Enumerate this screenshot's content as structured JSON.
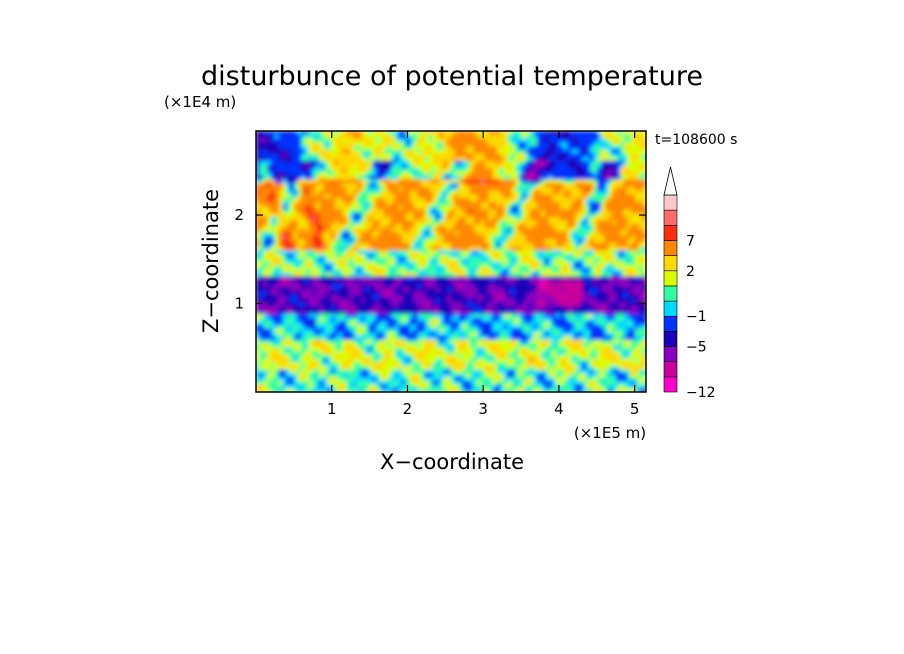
{
  "chart_data": {
    "type": "heatmap",
    "title": "disturbunce of potential temperature",
    "time_label": "t=108600 s",
    "xlabel": "X−coordinate",
    "ylabel": "Z−coordinate",
    "x_unit": "(×1E5 m)",
    "y_unit": "(×1E4 m)",
    "xlim": [
      0,
      5.15
    ],
    "ylim": [
      0,
      2.95
    ],
    "x_ticks": [
      1,
      2,
      3,
      4,
      5
    ],
    "x_tick_labels": [
      "1",
      "2",
      "3",
      "4",
      "5"
    ],
    "y_ticks": [
      1,
      2
    ],
    "y_tick_labels": [
      "1",
      "2"
    ],
    "colorbar": {
      "levels": [
        -12,
        -10,
        -7,
        -5,
        -3,
        -1,
        0,
        1,
        2,
        4,
        7,
        9,
        12
      ],
      "colors": [
        "#ff00cc",
        "#c8009c",
        "#8a00c0",
        "#1a00b8",
        "#0033ff",
        "#00d8ff",
        "#30ffa0",
        "#d8ff00",
        "#ffd800",
        "#ff8800",
        "#ff2d10",
        "#ff6a6a",
        "#ffc8c8"
      ],
      "extend_top_color": "#ffffff",
      "tick_values": [
        -12,
        -5,
        -1,
        2,
        7
      ],
      "tick_labels": [
        "−12",
        "−5",
        "−1",
        "2",
        "7"
      ]
    },
    "field_description_bands": [
      {
        "z_range": [
          0.0,
          0.25
        ],
        "dominant": "cyan/green with yellow patches"
      },
      {
        "z_range": [
          0.25,
          0.6
        ],
        "dominant": "green/yellow"
      },
      {
        "z_range": [
          0.6,
          0.9
        ],
        "dominant": "cyan"
      },
      {
        "z_range": [
          0.9,
          1.3
        ],
        "dominant": "blue (negative)"
      },
      {
        "z_range": [
          1.3,
          1.6
        ],
        "dominant": "cyan/green/yellow"
      },
      {
        "z_range": [
          1.6,
          2.4
        ],
        "dominant": "orange/red with blue wave cells"
      },
      {
        "z_range": [
          2.4,
          2.95
        ],
        "dominant": "mixed blue and orange"
      }
    ]
  }
}
